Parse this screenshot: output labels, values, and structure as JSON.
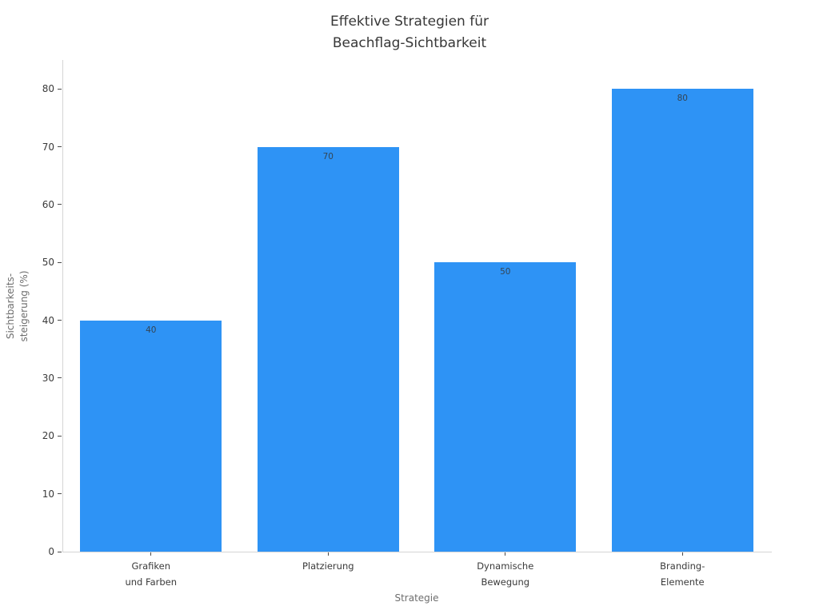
{
  "chart_data": {
    "type": "bar",
    "title": "Effektive Strategien für\nBeachflag-Sichtbarkeit",
    "xlabel": "Strategie",
    "ylabel": "Sichtbarkeits-\nsteigerung (%)",
    "categories": [
      "Grafiken\nund Farben",
      "Platzierung",
      "Dynamische\nBewegung",
      "Branding-\nElemente"
    ],
    "values": [
      40,
      70,
      50,
      80
    ],
    "yticks": [
      0,
      10,
      20,
      30,
      40,
      50,
      60,
      70,
      80
    ],
    "ylim": [
      0,
      85
    ],
    "grid": false,
    "legend": null,
    "bar_width_fraction": 0.8
  },
  "colors": {
    "bar": "#2E93F5",
    "title_text": "#373737",
    "tick_label": "#3a3a3a",
    "axis_title": "#6e6e6e",
    "spine": "#d4d4d4",
    "tick_mark": "#4a4a4a",
    "bar_value_text": "#344554",
    "background": "#ffffff"
  }
}
